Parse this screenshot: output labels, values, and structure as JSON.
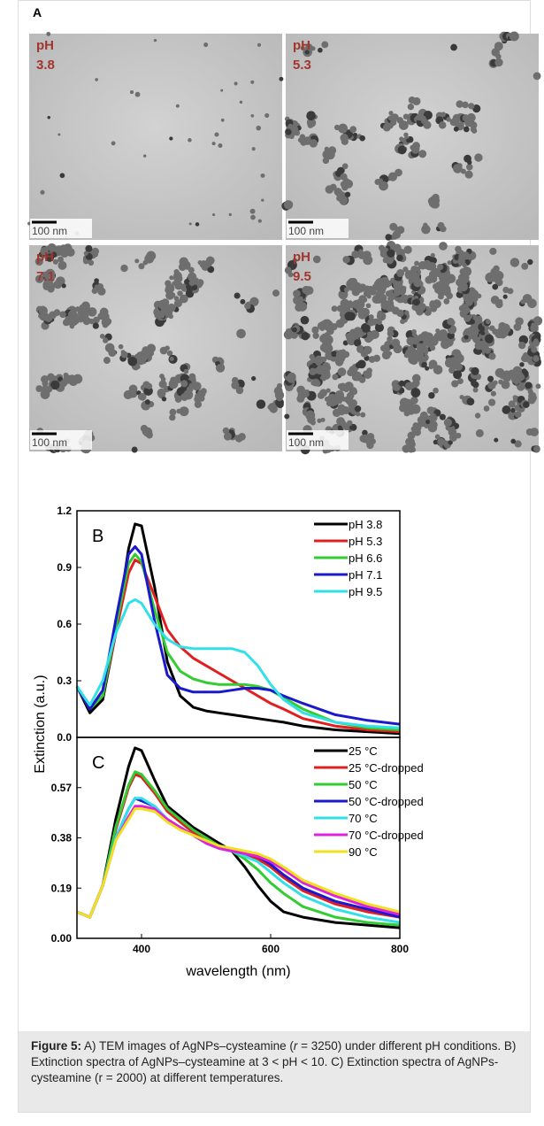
{
  "panel_A": {
    "label": "A",
    "images": [
      {
        "ph_label": "pH",
        "ph_value": "3.8",
        "scale_bar": "100 nm"
      },
      {
        "ph_label": "pH",
        "ph_value": "5.3",
        "scale_bar": "100 nm"
      },
      {
        "ph_label": "pH",
        "ph_value": "7.1",
        "scale_bar": "100 nm"
      },
      {
        "ph_label": "pH",
        "ph_value": "9.5",
        "scale_bar": "100 nm"
      }
    ]
  },
  "chart_data": [
    {
      "type": "line",
      "label": "B",
      "ylabel": "Extinction (a.u.)",
      "x": [
        300,
        320,
        340,
        360,
        380,
        390,
        400,
        420,
        440,
        460,
        480,
        500,
        520,
        540,
        560,
        580,
        600,
        620,
        650,
        700,
        750,
        800
      ],
      "xlim": [
        300,
        800
      ],
      "ylim": [
        0,
        1.2
      ],
      "yticks": [
        {
          "value": 0,
          "label": "0.0"
        },
        0.3,
        0.6,
        0.9,
        1.2
      ],
      "legend": "upper right",
      "series": [
        {
          "name": "pH  3.8",
          "color": "#000000",
          "values": [
            0.27,
            0.13,
            0.2,
            0.55,
            1.0,
            1.13,
            1.12,
            0.8,
            0.4,
            0.22,
            0.16,
            0.14,
            0.13,
            0.12,
            0.11,
            0.1,
            0.09,
            0.08,
            0.06,
            0.04,
            0.03,
            0.02
          ]
        },
        {
          "name": "pH  5.3",
          "color": "#e02020",
          "values": [
            0.27,
            0.15,
            0.22,
            0.55,
            0.87,
            0.94,
            0.92,
            0.75,
            0.57,
            0.48,
            0.42,
            0.38,
            0.34,
            0.3,
            0.26,
            0.22,
            0.18,
            0.15,
            0.1,
            0.06,
            0.04,
            0.03
          ]
        },
        {
          "name": "pH  6.6",
          "color": "#33cc33",
          "values": [
            0.27,
            0.15,
            0.22,
            0.58,
            0.92,
            0.97,
            0.93,
            0.68,
            0.45,
            0.35,
            0.31,
            0.29,
            0.28,
            0.28,
            0.28,
            0.27,
            0.25,
            0.21,
            0.15,
            0.08,
            0.05,
            0.04
          ]
        },
        {
          "name": "pH  7.1",
          "color": "#1a1acc",
          "values": [
            0.27,
            0.15,
            0.25,
            0.62,
            0.97,
            1.01,
            0.97,
            0.62,
            0.33,
            0.26,
            0.24,
            0.24,
            0.24,
            0.25,
            0.26,
            0.26,
            0.25,
            0.22,
            0.18,
            0.12,
            0.09,
            0.07
          ]
        },
        {
          "name": "pH  9.5",
          "color": "#33e0e8",
          "values": [
            0.27,
            0.17,
            0.3,
            0.55,
            0.71,
            0.73,
            0.71,
            0.6,
            0.52,
            0.48,
            0.47,
            0.47,
            0.47,
            0.47,
            0.45,
            0.38,
            0.28,
            0.2,
            0.13,
            0.08,
            0.06,
            0.05
          ]
        }
      ]
    },
    {
      "type": "line",
      "label": "C",
      "xlabel": "wavelength (nm)",
      "x": [
        300,
        320,
        340,
        360,
        380,
        390,
        400,
        420,
        440,
        460,
        480,
        500,
        520,
        540,
        560,
        580,
        600,
        620,
        650,
        700,
        750,
        800
      ],
      "xlim": [
        300,
        800
      ],
      "xticks": [
        400,
        600,
        800
      ],
      "ylim": [
        0,
        0.76
      ],
      "yticks": [
        {
          "value": 0,
          "label": "0.00"
        },
        0.19,
        0.38,
        0.57
      ],
      "legend": "upper right",
      "series": [
        {
          "name": "25 °C",
          "color": "#000000",
          "values": [
            0.1,
            0.08,
            0.2,
            0.45,
            0.65,
            0.72,
            0.71,
            0.6,
            0.5,
            0.46,
            0.42,
            0.39,
            0.36,
            0.33,
            0.27,
            0.2,
            0.14,
            0.1,
            0.08,
            0.06,
            0.05,
            0.04
          ]
        },
        {
          "name": "25 °C-dropped",
          "color": "#e02020",
          "values": [
            0.1,
            0.08,
            0.2,
            0.41,
            0.57,
            0.62,
            0.61,
            0.55,
            0.48,
            0.44,
            0.4,
            0.37,
            0.35,
            0.33,
            0.32,
            0.3,
            0.27,
            0.23,
            0.18,
            0.13,
            0.1,
            0.08
          ]
        },
        {
          "name": "50 °C",
          "color": "#33cc33",
          "values": [
            0.1,
            0.08,
            0.2,
            0.42,
            0.58,
            0.63,
            0.62,
            0.56,
            0.49,
            0.45,
            0.41,
            0.38,
            0.35,
            0.33,
            0.3,
            0.26,
            0.21,
            0.17,
            0.12,
            0.08,
            0.06,
            0.05
          ]
        },
        {
          "name": "50 °C-dropped",
          "color": "#1a1acc",
          "values": [
            0.1,
            0.08,
            0.2,
            0.38,
            0.49,
            0.53,
            0.52,
            0.5,
            0.45,
            0.42,
            0.39,
            0.36,
            0.34,
            0.33,
            0.32,
            0.31,
            0.28,
            0.24,
            0.19,
            0.14,
            0.11,
            0.08
          ]
        },
        {
          "name": "70 °C",
          "color": "#33e0e8",
          "values": [
            0.1,
            0.08,
            0.2,
            0.38,
            0.49,
            0.53,
            0.53,
            0.5,
            0.45,
            0.42,
            0.39,
            0.36,
            0.34,
            0.33,
            0.31,
            0.29,
            0.25,
            0.21,
            0.16,
            0.11,
            0.08,
            0.06
          ]
        },
        {
          "name": "70 °C-dropped",
          "color": "#e020e0",
          "values": [
            0.1,
            0.08,
            0.2,
            0.37,
            0.46,
            0.5,
            0.5,
            0.49,
            0.45,
            0.42,
            0.39,
            0.36,
            0.34,
            0.33,
            0.32,
            0.31,
            0.29,
            0.26,
            0.21,
            0.16,
            0.12,
            0.09
          ]
        },
        {
          "name": "90 °C",
          "color": "#f0e020",
          "values": [
            0.1,
            0.08,
            0.2,
            0.37,
            0.45,
            0.49,
            0.49,
            0.48,
            0.44,
            0.41,
            0.39,
            0.37,
            0.35,
            0.34,
            0.33,
            0.32,
            0.3,
            0.27,
            0.22,
            0.17,
            0.13,
            0.1
          ]
        }
      ]
    }
  ],
  "caption": {
    "label": "Figure 5:",
    "text_1": "A) TEM images of AgNPs–cysteamine (",
    "italic": "r",
    "text_2": " = 3250) under different pH conditions. B) Extinction spectra of AgNPs–cysteamine at 3 < pH < 10. C) Extinction spectra of AgNPs-cysteamine (r = 2000) at different temperatures."
  }
}
